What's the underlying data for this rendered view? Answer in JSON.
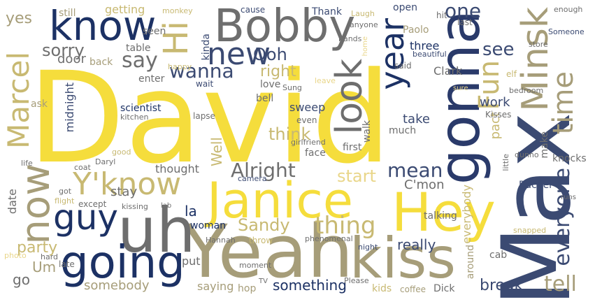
{
  "colors": {
    "navy": "#1c3164",
    "slate": "#3b4a72",
    "gray": "#6e6e6e",
    "khaki": "#a69d79",
    "tan": "#c8b972",
    "yellow": "#f5dd3c",
    "lightyellow": "#e9d68a"
  },
  "words": {
    "david": "David",
    "max": "Max",
    "gonna": "gonna",
    "yeah": "Yeah",
    "bobby": "Bobby",
    "janice": "Janice",
    "hey": "Hey",
    "kiss": "kiss",
    "uh": "uh",
    "going": "going",
    "know": "know",
    "minsk": "Minsk",
    "year": "year",
    "look": "look",
    "new": "new",
    "hi": "Hi",
    "now": "now",
    "guy": "guy",
    "yknow": "Y'know",
    "marcel": "Marcel",
    "fun": "Fun",
    "time": "time",
    "everyone": "everyone",
    "thing": "thing",
    "alright": "Alright",
    "wanna": "wanna",
    "sorry": "sorry",
    "say": "say",
    "right": "right",
    "see": "see",
    "one": "one",
    "mean": "mean",
    "think": "think",
    "start": "start",
    "sandy": "Sandy",
    "tell": "tell",
    "break": "break",
    "something": "something",
    "somebody": "somebody",
    "really": "really",
    "yes": "yes",
    "ooh": "Ooh",
    "well": "Well",
    "party": "party",
    "um": "Um",
    "go": "go",
    "la": "la",
    "stay": "stay",
    "thought": "thought",
    "date": "date",
    "cmon": "C'mon",
    "sweep": "sweep",
    "work": "work",
    "take": "take",
    "pact": "pact",
    "everybody": "everybody",
    "door": "door",
    "table": "table",
    "getting": "getting",
    "still": "still",
    "back": "back",
    "seen": "seen",
    "three": "three",
    "paolo": "Paolo",
    "clark": "Clark",
    "open": "open",
    "thank": "Thank",
    "cause": "cause",
    "midnight": "midnight",
    "scientist": "scientist",
    "kinda": "kinda",
    "enter": "enter",
    "ask": "ask",
    "bell": "bell",
    "love": "love",
    "wait": "wait",
    "saying": "saying",
    "put": "put",
    "late": "late",
    "woman": "woman",
    "hop": "hop",
    "kids": "kids",
    "coffee": "coffee",
    "dick": "Dick",
    "rachel": "Rachel",
    "knocks": "knocks",
    "make": "make",
    "walk": "walk",
    "first": "first",
    "face": "face",
    "much": "much",
    "talking": "talking",
    "cab": "cab",
    "around": "around",
    "kisses": "Kisses",
    "bedroom": "bedroom",
    "elf": "elf",
    "store": "store",
    "someone": "Someone",
    "enough": "enough",
    "last": "last",
    "hit": "hit",
    "beautiful": "beautiful",
    "said": "said",
    "hands": "hands",
    "anyone": "anyone",
    "laugh": "Laugh",
    "home": "home",
    "monkey": "monkey",
    "happy": "happy",
    "lapse": "lapse",
    "kitchen": "kitchen",
    "sung": "Sung",
    "leave": "leave",
    "sure": "sure",
    "girlfriend": "girlfriend",
    "even": "even",
    "camera": "camera",
    "daryl": "Daryl",
    "coat": "coat",
    "good": "good",
    "life": "life",
    "got": "got",
    "flight": "flight",
    "except": "except",
    "lab": "lab",
    "kissing": "kissing",
    "hannah": "Hannah",
    "throw": "throw",
    "phenomenal": "phenomenal",
    "night": "night",
    "please": "Please",
    "hard": "hard",
    "photo": "photo",
    "moment": "moment",
    "tv": "TV",
    "dunno": "dunno",
    "little": "little",
    "runs": "runs",
    "snapped": "snapped"
  }
}
